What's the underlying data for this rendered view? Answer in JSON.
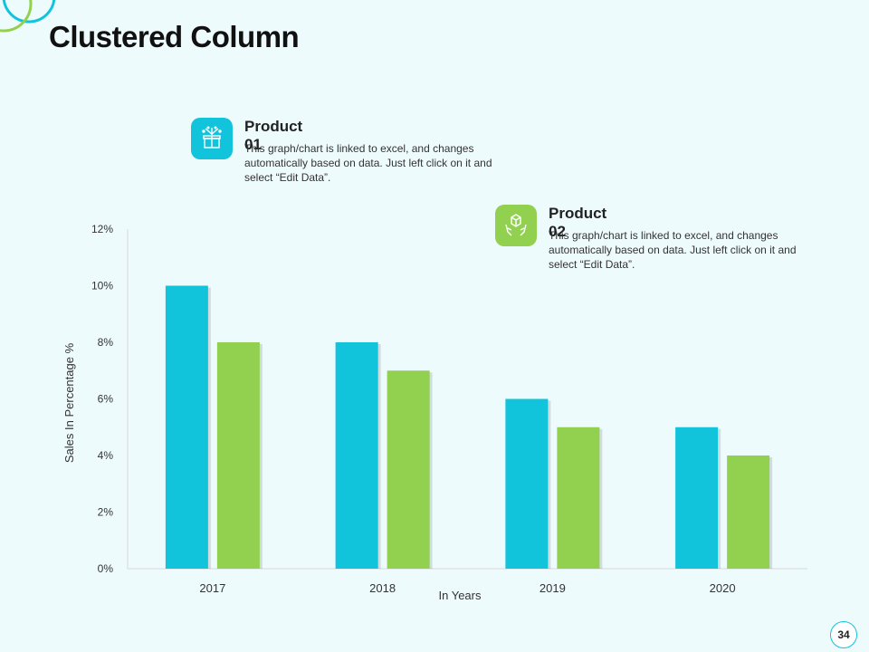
{
  "slide": {
    "title": "Clustered Column",
    "page_number": "34"
  },
  "colors": {
    "product_01": "#12c3dc",
    "product_02": "#92d050",
    "background": "#eefbfd"
  },
  "legend": [
    {
      "name": "Product 01",
      "icon": "gift-box-icon",
      "description": "This graph/chart is linked to excel, and changes automatically based on data. Just left click on it and select “Edit Data”."
    },
    {
      "name": "Product 02",
      "icon": "hands-holding-box-icon",
      "description": "This graph/chart is linked to excel, and changes automatically based on data. Just left click on it and select “Edit Data”."
    }
  ],
  "chart_data": {
    "type": "bar",
    "title": "Clustered Column",
    "xlabel": "In Years",
    "ylabel": "Sales In Percentage %",
    "categories": [
      "2017",
      "2018",
      "2019",
      "2020"
    ],
    "series": [
      {
        "name": "Product 01",
        "values": [
          10,
          8,
          6,
          5
        ]
      },
      {
        "name": "Product 02",
        "values": [
          8,
          7,
          5,
          4
        ]
      }
    ],
    "ylim": [
      0,
      12
    ],
    "yticks": [
      0,
      2,
      4,
      6,
      8,
      10,
      12
    ],
    "ytick_labels": [
      "0%",
      "2%",
      "4%",
      "6%",
      "8%",
      "10%",
      "12%"
    ],
    "grid": false
  }
}
